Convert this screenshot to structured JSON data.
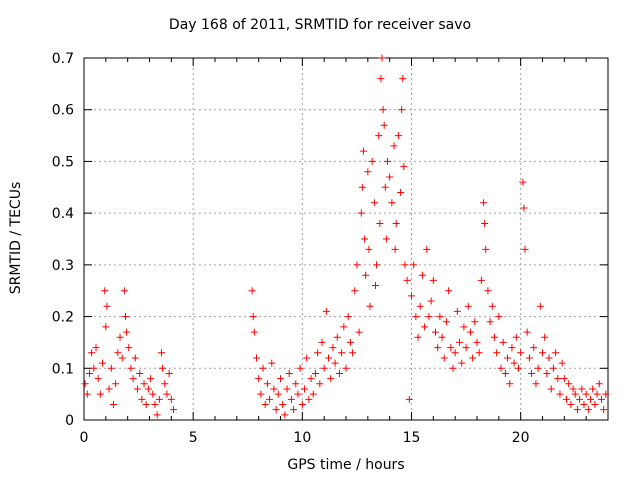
{
  "chart_data": {
    "type": "scatter",
    "title": "Day 168 of 2011, SRMTID for receiver savo",
    "xlabel": "GPS time / hours",
    "ylabel": "SRMTID / TECUs",
    "xlim": [
      0,
      24
    ],
    "ylim": [
      0,
      0.7
    ],
    "xticks": [
      0,
      5,
      10,
      15,
      20
    ],
    "yticks": [
      0,
      0.1,
      0.2,
      0.3,
      0.4,
      0.5,
      0.6,
      0.7
    ],
    "ytick_labels": [
      "0",
      "0.1",
      "0.2",
      "0.3",
      "0.4",
      "0.5",
      "0.6",
      "0.7"
    ],
    "grid": true,
    "marker": "+",
    "color": "#ff0000",
    "series": [
      {
        "name": "SRMTID",
        "points": [
          [
            0.05,
            0.07
          ],
          [
            0.15,
            0.05
          ],
          [
            0.25,
            0.09
          ],
          [
            0.35,
            0.13
          ],
          [
            0.45,
            0.1
          ],
          [
            0.55,
            0.14
          ],
          [
            0.65,
            0.08
          ],
          [
            0.75,
            0.05
          ],
          [
            0.85,
            0.11
          ],
          [
            0.95,
            0.25
          ],
          [
            1.0,
            0.18
          ],
          [
            1.05,
            0.22
          ],
          [
            1.15,
            0.06
          ],
          [
            1.25,
            0.1
          ],
          [
            1.35,
            0.03
          ],
          [
            1.45,
            0.07
          ],
          [
            1.55,
            0.13
          ],
          [
            1.65,
            0.16
          ],
          [
            1.75,
            0.12
          ],
          [
            1.85,
            0.25
          ],
          [
            1.9,
            0.2
          ],
          [
            1.95,
            0.17
          ],
          [
            2.05,
            0.14
          ],
          [
            2.15,
            0.1
          ],
          [
            2.25,
            0.08
          ],
          [
            2.35,
            0.12
          ],
          [
            2.45,
            0.06
          ],
          [
            2.55,
            0.09
          ],
          [
            2.65,
            0.04
          ],
          [
            2.75,
            0.07
          ],
          [
            2.85,
            0.03
          ],
          [
            2.95,
            0.06
          ],
          [
            3.05,
            0.08
          ],
          [
            3.15,
            0.05
          ],
          [
            3.25,
            0.03
          ],
          [
            3.35,
            0.01
          ],
          [
            3.45,
            0.04
          ],
          [
            3.55,
            0.13
          ],
          [
            3.6,
            0.1
          ],
          [
            3.7,
            0.07
          ],
          [
            3.8,
            0.05
          ],
          [
            3.9,
            0.09
          ],
          [
            4.0,
            0.04
          ],
          [
            4.1,
            0.02
          ],
          [
            7.7,
            0.25
          ],
          [
            7.75,
            0.2
          ],
          [
            7.8,
            0.17
          ],
          [
            7.9,
            0.12
          ],
          [
            8.0,
            0.08
          ],
          [
            8.1,
            0.05
          ],
          [
            8.2,
            0.1
          ],
          [
            8.3,
            0.03
          ],
          [
            8.4,
            0.07
          ],
          [
            8.5,
            0.04
          ],
          [
            8.6,
            0.11
          ],
          [
            8.7,
            0.06
          ],
          [
            8.8,
            0.02
          ],
          [
            8.9,
            0.05
          ],
          [
            9.0,
            0.08
          ],
          [
            9.1,
            0.03
          ],
          [
            9.2,
            0.01
          ],
          [
            9.3,
            0.06
          ],
          [
            9.4,
            0.09
          ],
          [
            9.5,
            0.04
          ],
          [
            9.6,
            0.02
          ],
          [
            9.7,
            0.07
          ],
          [
            9.8,
            0.05
          ],
          [
            9.9,
            0.1
          ],
          [
            10.0,
            0.03
          ],
          [
            10.1,
            0.06
          ],
          [
            10.2,
            0.12
          ],
          [
            10.3,
            0.04
          ],
          [
            10.4,
            0.08
          ],
          [
            10.5,
            0.05
          ],
          [
            10.6,
            0.09
          ],
          [
            10.7,
            0.13
          ],
          [
            10.8,
            0.07
          ],
          [
            10.9,
            0.15
          ],
          [
            11.0,
            0.1
          ],
          [
            11.1,
            0.21
          ],
          [
            11.2,
            0.12
          ],
          [
            11.3,
            0.08
          ],
          [
            11.4,
            0.14
          ],
          [
            11.5,
            0.11
          ],
          [
            11.6,
            0.16
          ],
          [
            11.7,
            0.09
          ],
          [
            11.8,
            0.13
          ],
          [
            11.9,
            0.18
          ],
          [
            12.0,
            0.1
          ],
          [
            12.1,
            0.2
          ],
          [
            12.2,
            0.15
          ],
          [
            12.3,
            0.13
          ],
          [
            12.4,
            0.25
          ],
          [
            12.5,
            0.3
          ],
          [
            12.6,
            0.17
          ],
          [
            12.7,
            0.4
          ],
          [
            12.75,
            0.45
          ],
          [
            12.8,
            0.52
          ],
          [
            12.85,
            0.35
          ],
          [
            12.9,
            0.28
          ],
          [
            13.0,
            0.48
          ],
          [
            13.05,
            0.33
          ],
          [
            13.1,
            0.22
          ],
          [
            13.2,
            0.5
          ],
          [
            13.3,
            0.42
          ],
          [
            13.35,
            0.26
          ],
          [
            13.4,
            0.3
          ],
          [
            13.5,
            0.55
          ],
          [
            13.55,
            0.38
          ],
          [
            13.6,
            0.66
          ],
          [
            13.65,
            0.7
          ],
          [
            13.7,
            0.6
          ],
          [
            13.75,
            0.57
          ],
          [
            13.8,
            0.45
          ],
          [
            13.85,
            0.35
          ],
          [
            13.9,
            0.5
          ],
          [
            14.0,
            0.47
          ],
          [
            14.1,
            0.42
          ],
          [
            14.2,
            0.53
          ],
          [
            14.25,
            0.33
          ],
          [
            14.3,
            0.38
          ],
          [
            14.4,
            0.55
          ],
          [
            14.5,
            0.44
          ],
          [
            14.55,
            0.6
          ],
          [
            14.6,
            0.66
          ],
          [
            14.65,
            0.49
          ],
          [
            14.7,
            0.3
          ],
          [
            14.8,
            0.27
          ],
          [
            14.9,
            0.04
          ],
          [
            15.0,
            0.24
          ],
          [
            15.1,
            0.3
          ],
          [
            15.2,
            0.2
          ],
          [
            15.3,
            0.16
          ],
          [
            15.4,
            0.22
          ],
          [
            15.5,
            0.28
          ],
          [
            15.6,
            0.18
          ],
          [
            15.7,
            0.33
          ],
          [
            15.8,
            0.2
          ],
          [
            15.9,
            0.23
          ],
          [
            16.0,
            0.27
          ],
          [
            16.1,
            0.17
          ],
          [
            16.2,
            0.14
          ],
          [
            16.3,
            0.2
          ],
          [
            16.4,
            0.16
          ],
          [
            16.5,
            0.12
          ],
          [
            16.6,
            0.19
          ],
          [
            16.7,
            0.25
          ],
          [
            16.8,
            0.14
          ],
          [
            16.9,
            0.1
          ],
          [
            17.0,
            0.13
          ],
          [
            17.1,
            0.21
          ],
          [
            17.2,
            0.15
          ],
          [
            17.3,
            0.11
          ],
          [
            17.4,
            0.18
          ],
          [
            17.5,
            0.14
          ],
          [
            17.6,
            0.22
          ],
          [
            17.7,
            0.17
          ],
          [
            17.8,
            0.12
          ],
          [
            17.9,
            0.19
          ],
          [
            18.0,
            0.15
          ],
          [
            18.1,
            0.13
          ],
          [
            18.2,
            0.27
          ],
          [
            18.3,
            0.42
          ],
          [
            18.35,
            0.38
          ],
          [
            18.4,
            0.33
          ],
          [
            18.5,
            0.25
          ],
          [
            18.6,
            0.19
          ],
          [
            18.7,
            0.22
          ],
          [
            18.8,
            0.16
          ],
          [
            18.9,
            0.13
          ],
          [
            19.0,
            0.2
          ],
          [
            19.1,
            0.1
          ],
          [
            19.2,
            0.15
          ],
          [
            19.3,
            0.09
          ],
          [
            19.4,
            0.12
          ],
          [
            19.5,
            0.07
          ],
          [
            19.6,
            0.14
          ],
          [
            19.7,
            0.11
          ],
          [
            19.8,
            0.16
          ],
          [
            19.9,
            0.1
          ],
          [
            20.0,
            0.13
          ],
          [
            20.1,
            0.46
          ],
          [
            20.15,
            0.41
          ],
          [
            20.2,
            0.33
          ],
          [
            20.3,
            0.17
          ],
          [
            20.4,
            0.12
          ],
          [
            20.5,
            0.09
          ],
          [
            20.6,
            0.14
          ],
          [
            20.7,
            0.07
          ],
          [
            20.8,
            0.1
          ],
          [
            20.9,
            0.22
          ],
          [
            21.0,
            0.13
          ],
          [
            21.1,
            0.16
          ],
          [
            21.2,
            0.09
          ],
          [
            21.3,
            0.12
          ],
          [
            21.4,
            0.06
          ],
          [
            21.5,
            0.1
          ],
          [
            21.6,
            0.13
          ],
          [
            21.7,
            0.08
          ],
          [
            21.8,
            0.05
          ],
          [
            21.9,
            0.11
          ],
          [
            22.0,
            0.08
          ],
          [
            22.1,
            0.04
          ],
          [
            22.2,
            0.07
          ],
          [
            22.3,
            0.03
          ],
          [
            22.4,
            0.06
          ],
          [
            22.5,
            0.05
          ],
          [
            22.6,
            0.02
          ],
          [
            22.7,
            0.04
          ],
          [
            22.8,
            0.06
          ],
          [
            22.9,
            0.03
          ],
          [
            23.0,
            0.05
          ],
          [
            23.1,
            0.02
          ],
          [
            23.2,
            0.04
          ],
          [
            23.3,
            0.06
          ],
          [
            23.4,
            0.03
          ],
          [
            23.5,
            0.05
          ],
          [
            23.6,
            0.07
          ],
          [
            23.7,
            0.04
          ],
          [
            23.8,
            0.02
          ],
          [
            23.9,
            0.05
          ]
        ]
      }
    ]
  }
}
